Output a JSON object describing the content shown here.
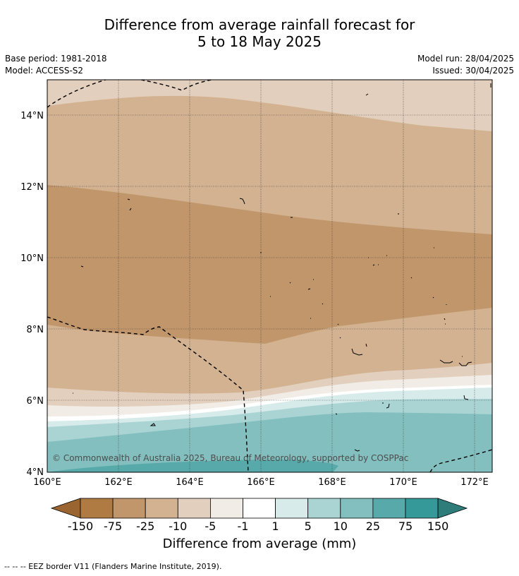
{
  "title": {
    "line1": "Difference from average rainfall forecast for",
    "line2": "5 to 18 May 2025"
  },
  "meta": {
    "base_period": "Base period: 1981-2018",
    "model": "Model: ACCESS-S2",
    "model_run": "Model run: 28/04/2025",
    "issued": "Issued: 30/04/2025"
  },
  "map": {
    "x_ticks": [
      "160°E",
      "162°E",
      "164°E",
      "166°E",
      "168°E",
      "170°E",
      "172°E"
    ],
    "y_ticks": [
      "14°N",
      "12°N",
      "10°N",
      "8°N",
      "6°N",
      "4°N"
    ],
    "copyright": "© Commonwealth of Australia 2025, Bureau of Meteorology, supported by COSPPac",
    "colors": {
      "b150": "#9a6531",
      "b75": "#b07a43",
      "b25": "#c1966b",
      "b10": "#d2b291",
      "b5": "#e3cfbd",
      "b1": "#f2ece6",
      "white": "#ffffff",
      "g1": "#d6ebea",
      "g5": "#aad4d4",
      "g10": "#84bfbf",
      "g25": "#58aaaa",
      "g75": "#359999",
      "g150": "#2e7d7a"
    }
  },
  "colorbar": {
    "ticks": [
      "-150",
      "-75",
      "-25",
      "-10",
      "-5",
      "-1",
      "1",
      "5",
      "10",
      "25",
      "75",
      "150"
    ],
    "title": "Difference from average (mm)"
  },
  "footnote": "--  --  -- EEZ border V11 (Flanders Marine Institute, 2019)."
}
